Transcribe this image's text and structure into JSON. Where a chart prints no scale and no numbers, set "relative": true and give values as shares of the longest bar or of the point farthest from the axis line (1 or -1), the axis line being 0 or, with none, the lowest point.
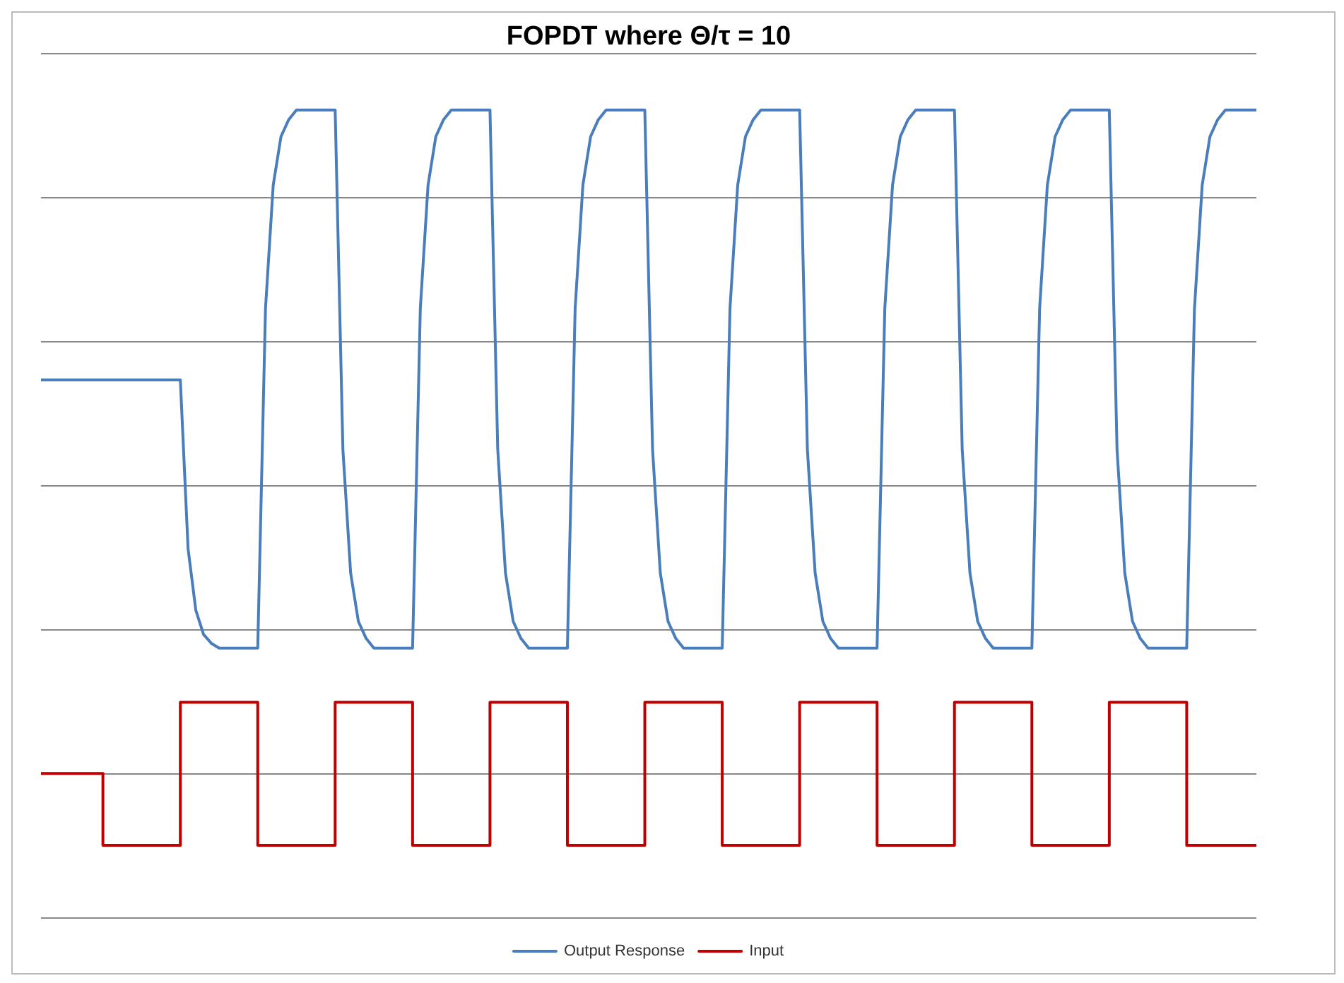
{
  "chart_data": {
    "type": "line",
    "title": "FOPDT where Θ/τ = 10",
    "relative": true,
    "grid": "y",
    "legend": "bottom",
    "marker": "none",
    "categories": [
      null,
      null,
      null,
      null,
      null,
      null,
      null,
      null,
      null,
      null,
      null,
      null,
      null,
      null,
      null,
      null,
      null,
      null,
      null,
      null,
      null,
      null,
      null,
      null,
      null,
      null,
      null,
      null,
      null,
      null,
      null,
      null,
      null,
      null,
      null,
      null,
      null,
      null,
      null,
      null,
      null,
      null,
      null,
      null,
      null,
      null,
      null,
      null,
      null,
      null,
      null,
      null,
      null,
      null,
      null,
      null,
      null,
      null,
      null,
      null,
      null,
      null,
      null,
      null,
      null,
      null,
      null,
      null,
      null,
      null,
      null,
      null,
      null,
      null,
      null,
      null,
      null,
      null,
      null,
      null,
      null,
      null,
      null,
      null,
      null,
      null,
      null,
      null,
      null,
      null,
      null,
      null,
      null,
      null,
      null,
      null,
      null,
      null,
      null,
      null,
      null,
      null,
      null,
      null,
      null,
      null,
      null,
      null,
      null,
      null,
      null,
      null,
      null,
      null,
      null,
      null,
      null,
      null,
      null,
      null,
      null,
      null,
      null,
      null,
      null,
      null,
      null,
      null,
      null,
      null,
      null,
      null,
      null,
      null,
      null,
      null,
      null,
      null,
      null,
      null,
      null,
      null,
      null,
      null,
      null,
      null,
      null,
      null,
      null,
      null,
      null,
      null,
      null,
      null,
      null,
      null,
      null,
      null
    ],
    "series": [
      {
        "name": "Output Response",
        "color": "#4a7ebb",
        "type": "line",
        "values": [
          0.666,
          0.666,
          0.666,
          0.666,
          0.666,
          0.666,
          0.666,
          0.666,
          0.666,
          0.666,
          0.666,
          0.666,
          0.666,
          0.666,
          0.666,
          0.666,
          0.666,
          0.666,
          0.666,
          0.457,
          0.381,
          0.351,
          0.34,
          0.334,
          0.334,
          0.334,
          0.334,
          0.334,
          0.334,
          0.754,
          0.907,
          0.967,
          0.988,
          1,
          1,
          1,
          1,
          1,
          1,
          0.58,
          0.427,
          0.367,
          0.346,
          0.334,
          0.334,
          0.334,
          0.334,
          0.334,
          0.334,
          0.754,
          0.907,
          0.967,
          0.988,
          1,
          1,
          1,
          1,
          1,
          1,
          0.58,
          0.427,
          0.367,
          0.346,
          0.334,
          0.334,
          0.334,
          0.334,
          0.334,
          0.334,
          0.754,
          0.907,
          0.967,
          0.988,
          1,
          1,
          1,
          1,
          1,
          1,
          0.58,
          0.427,
          0.367,
          0.346,
          0.334,
          0.334,
          0.334,
          0.334,
          0.334,
          0.334,
          0.754,
          0.907,
          0.967,
          0.988,
          1,
          1,
          1,
          1,
          1,
          1,
          0.58,
          0.427,
          0.367,
          0.346,
          0.334,
          0.334,
          0.334,
          0.334,
          0.334,
          0.334,
          0.754,
          0.907,
          0.967,
          0.988,
          1,
          1,
          1,
          1,
          1,
          1,
          0.58,
          0.427,
          0.367,
          0.346,
          0.334,
          0.334,
          0.334,
          0.334,
          0.334,
          0.334,
          0.754,
          0.907,
          0.967,
          0.988,
          1,
          1,
          1,
          1,
          1,
          1,
          0.58,
          0.427,
          0.367,
          0.346,
          0.334,
          0.334,
          0.334,
          0.334,
          0.334,
          0.334,
          0.754,
          0.907,
          0.967,
          0.988,
          1,
          1,
          1,
          1,
          1
        ]
      },
      {
        "name": "Input",
        "color": "#c00000",
        "type": "step",
        "values": [
          0.179,
          0.179,
          0.179,
          0.179,
          0.179,
          0.179,
          0.179,
          0.179,
          0.179,
          0.09,
          0.09,
          0.09,
          0.09,
          0.09,
          0.09,
          0.09,
          0.09,
          0.09,
          0.09,
          0.267,
          0.267,
          0.267,
          0.267,
          0.267,
          0.267,
          0.267,
          0.267,
          0.267,
          0.267,
          0.09,
          0.09,
          0.09,
          0.09,
          0.09,
          0.09,
          0.09,
          0.09,
          0.09,
          0.09,
          0.267,
          0.267,
          0.267,
          0.267,
          0.267,
          0.267,
          0.267,
          0.267,
          0.267,
          0.267,
          0.09,
          0.09,
          0.09,
          0.09,
          0.09,
          0.09,
          0.09,
          0.09,
          0.09,
          0.09,
          0.267,
          0.267,
          0.267,
          0.267,
          0.267,
          0.267,
          0.267,
          0.267,
          0.267,
          0.267,
          0.09,
          0.09,
          0.09,
          0.09,
          0.09,
          0.09,
          0.09,
          0.09,
          0.09,
          0.09,
          0.267,
          0.267,
          0.267,
          0.267,
          0.267,
          0.267,
          0.267,
          0.267,
          0.267,
          0.267,
          0.09,
          0.09,
          0.09,
          0.09,
          0.09,
          0.09,
          0.09,
          0.09,
          0.09,
          0.09,
          0.267,
          0.267,
          0.267,
          0.267,
          0.267,
          0.267,
          0.267,
          0.267,
          0.267,
          0.267,
          0.09,
          0.09,
          0.09,
          0.09,
          0.09,
          0.09,
          0.09,
          0.09,
          0.09,
          0.09,
          0.267,
          0.267,
          0.267,
          0.267,
          0.267,
          0.267,
          0.267,
          0.267,
          0.267,
          0.267,
          0.09,
          0.09,
          0.09,
          0.09,
          0.09,
          0.09,
          0.09,
          0.09,
          0.09,
          0.09,
          0.267,
          0.267,
          0.267,
          0.267,
          0.267,
          0.267,
          0.267,
          0.267,
          0.267,
          0.267,
          0.09,
          0.09,
          0.09,
          0.09,
          0.09,
          0.09,
          0.09,
          0.09,
          0.09
        ]
      }
    ]
  }
}
